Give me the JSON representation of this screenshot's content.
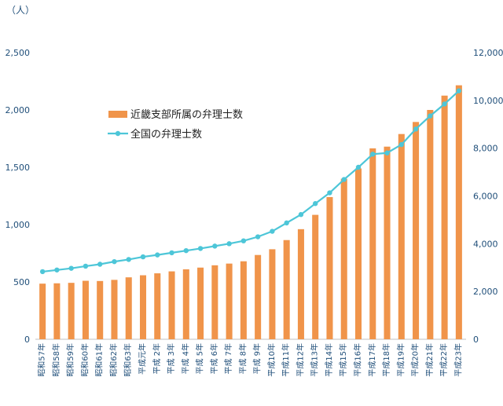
{
  "chart_data": {
    "type": "bar+line",
    "unit_label": "（人）",
    "categories": [
      "昭和57年",
      "昭和58年",
      "昭和59年",
      "昭和60年",
      "昭和61年",
      "昭和62年",
      "昭和63年",
      "平成元年",
      "平成 2年",
      "平成 3年",
      "平成 4年",
      "平成 5年",
      "平成 6年",
      "平成 7年",
      "平成 8年",
      "平成 9年",
      "平成10年",
      "平成11年",
      "平成12年",
      "平成13年",
      "平成14年",
      "平成15年",
      "平成16年",
      "平成17年",
      "平成18年",
      "平成19年",
      "平成20年",
      "平成21年",
      "平成22年",
      "平成23年"
    ],
    "series": [
      {
        "name": "近畿支部所属の弁理士数",
        "type": "bar",
        "axis": "left",
        "color": "#f0944a",
        "values": [
          485,
          488,
          492,
          510,
          508,
          518,
          540,
          558,
          575,
          592,
          610,
          625,
          645,
          660,
          680,
          735,
          785,
          865,
          960,
          1085,
          1240,
          1400,
          1490,
          1665,
          1680,
          1790,
          1895,
          2000,
          2125,
          2215
        ]
      },
      {
        "name": "全国の弁理士数",
        "type": "line",
        "axis": "right",
        "color": "#4dc6d8",
        "values": [
          2830,
          2900,
          2970,
          3060,
          3140,
          3250,
          3340,
          3450,
          3530,
          3620,
          3710,
          3800,
          3900,
          4000,
          4120,
          4290,
          4520,
          4870,
          5220,
          5680,
          6130,
          6690,
          7200,
          7750,
          7800,
          8150,
          8800,
          9350,
          9850,
          10400
        ]
      }
    ],
    "ylim_left": [
      0,
      2500
    ],
    "yticks_left": [
      "0",
      "500",
      "1,000",
      "1,500",
      "2,000",
      "2,500"
    ],
    "ylim_right": [
      0,
      12000
    ],
    "yticks_right": [
      "0",
      "2,000",
      "4,000",
      "6,000",
      "8,000",
      "10,000",
      "12,000"
    ],
    "grid": false,
    "legend_position": "upper-left-inside"
  }
}
